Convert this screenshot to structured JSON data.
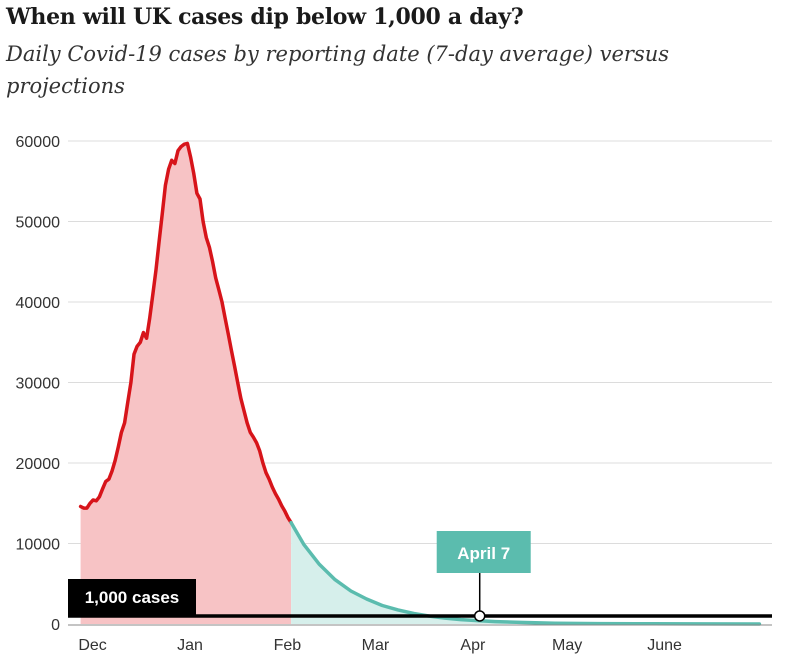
{
  "chart_data": {
    "type": "area",
    "title": "When will UK cases dip below 1,000 a day?",
    "subtitle": "Daily Covid-19 cases by reporting date (7-day average) versus projections",
    "ylim": [
      0,
      60000
    ],
    "yticks": [
      0,
      10000,
      20000,
      30000,
      40000,
      50000,
      60000
    ],
    "xlim": [
      "2020-11-27",
      "2021-07-09"
    ],
    "xticks": [
      {
        "label": "Dec",
        "date": "2020-12-01"
      },
      {
        "label": "Jan",
        "date": "2021-01-01"
      },
      {
        "label": "Feb",
        "date": "2021-02-01"
      },
      {
        "label": "Mar",
        "date": "2021-03-01"
      },
      {
        "label": "Apr",
        "date": "2021-04-01"
      },
      {
        "label": "May",
        "date": "2021-05-01"
      },
      {
        "label": "June",
        "date": "2021-06-01"
      }
    ],
    "grid": true,
    "series": [
      {
        "color": "#d7141a",
        "fill": "#f7c3c5",
        "points": [
          [
            "2020-12-01",
            14600
          ],
          [
            "2020-12-02",
            14400
          ],
          [
            "2020-12-03",
            14400
          ],
          [
            "2020-12-04",
            15000
          ],
          [
            "2020-12-05",
            15400
          ],
          [
            "2020-12-06",
            15300
          ],
          [
            "2020-12-07",
            15800
          ],
          [
            "2020-12-08",
            16800
          ],
          [
            "2020-12-09",
            17700
          ],
          [
            "2020-12-10",
            18000
          ],
          [
            "2020-12-11",
            19000
          ],
          [
            "2020-12-12",
            20300
          ],
          [
            "2020-12-13",
            22000
          ],
          [
            "2020-12-14",
            23800
          ],
          [
            "2020-12-15",
            25000
          ],
          [
            "2020-12-16",
            27500
          ],
          [
            "2020-12-17",
            30000
          ],
          [
            "2020-12-18",
            33500
          ],
          [
            "2020-12-19",
            34500
          ],
          [
            "2020-12-20",
            35000
          ],
          [
            "2020-12-21",
            36200
          ],
          [
            "2020-12-22",
            35500
          ],
          [
            "2020-12-23",
            38000
          ],
          [
            "2020-12-24",
            41000
          ],
          [
            "2020-12-25",
            44000
          ],
          [
            "2020-12-26",
            47500
          ],
          [
            "2020-12-27",
            51000
          ],
          [
            "2020-12-28",
            54500
          ],
          [
            "2020-12-29",
            56500
          ],
          [
            "2020-12-30",
            57600
          ],
          [
            "2020-12-31",
            57200
          ],
          [
            "2021-01-01",
            58800
          ],
          [
            "2021-01-02",
            59300
          ],
          [
            "2021-01-03",
            59600
          ],
          [
            "2021-01-04",
            59700
          ],
          [
            "2021-01-05",
            58000
          ],
          [
            "2021-01-06",
            56000
          ],
          [
            "2021-01-07",
            53500
          ],
          [
            "2021-01-08",
            52800
          ],
          [
            "2021-01-09",
            50000
          ],
          [
            "2021-01-10",
            48000
          ],
          [
            "2021-01-11",
            46800
          ],
          [
            "2021-01-12",
            45000
          ],
          [
            "2021-01-13",
            43000
          ],
          [
            "2021-01-14",
            41500
          ],
          [
            "2021-01-15",
            40000
          ],
          [
            "2021-01-16",
            38000
          ],
          [
            "2021-01-17",
            36000
          ],
          [
            "2021-01-18",
            34000
          ],
          [
            "2021-01-19",
            32000
          ],
          [
            "2021-01-20",
            30000
          ],
          [
            "2021-01-21",
            28000
          ],
          [
            "2021-01-22",
            26500
          ],
          [
            "2021-01-23",
            25000
          ],
          [
            "2021-01-24",
            23800
          ],
          [
            "2021-01-25",
            23200
          ],
          [
            "2021-01-26",
            22500
          ],
          [
            "2021-01-27",
            21500
          ],
          [
            "2021-01-28",
            20000
          ],
          [
            "2021-01-29",
            18800
          ],
          [
            "2021-01-30",
            18000
          ],
          [
            "2021-01-31",
            17000
          ],
          [
            "2021-02-01",
            16200
          ],
          [
            "2021-02-02",
            15500
          ],
          [
            "2021-02-03",
            14700
          ],
          [
            "2021-02-04",
            14000
          ],
          [
            "2021-02-05",
            13200
          ],
          [
            "2021-02-06",
            12600
          ]
        ]
      },
      {
        "color": "#5bbcae",
        "fill": "#d6efeb",
        "points": [
          [
            "2021-02-06",
            12600
          ],
          [
            "2021-02-10",
            9900
          ],
          [
            "2021-02-15",
            7400
          ],
          [
            "2021-02-20",
            5500
          ],
          [
            "2021-02-25",
            4100
          ],
          [
            "2021-03-02",
            3100
          ],
          [
            "2021-03-07",
            2300
          ],
          [
            "2021-03-12",
            1750
          ],
          [
            "2021-03-17",
            1300
          ],
          [
            "2021-03-22",
            980
          ],
          [
            "2021-03-27",
            730
          ],
          [
            "2021-04-01",
            550
          ],
          [
            "2021-04-07",
            400
          ],
          [
            "2021-04-12",
            300
          ],
          [
            "2021-04-20",
            200
          ],
          [
            "2021-05-01",
            100
          ],
          [
            "2021-05-15",
            50
          ],
          [
            "2021-06-01",
            20
          ],
          [
            "2021-06-15",
            10
          ],
          [
            "2021-07-05",
            5
          ]
        ]
      }
    ],
    "threshold": {
      "value": 1000,
      "label": "1,000 cases",
      "color": "#000000"
    },
    "annotation": {
      "label": "April 7",
      "date": "2021-04-07",
      "color": "#5bbcae"
    }
  }
}
